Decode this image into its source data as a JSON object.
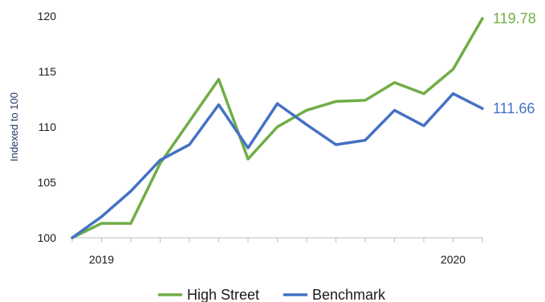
{
  "chart_data": {
    "type": "line",
    "title": "",
    "ylabel": "Indexed to 100",
    "xlabel": "",
    "ylim": [
      100,
      120
    ],
    "yticks": [
      100,
      105,
      110,
      115,
      120
    ],
    "x_labels": [
      {
        "index": 1,
        "label": "2019"
      },
      {
        "index": 13,
        "label": "2020"
      }
    ],
    "num_points": 15,
    "grid": false,
    "legend_position": "bottom",
    "series": [
      {
        "name": "High Street",
        "color": "#70ad47",
        "values": [
          100,
          101.3,
          101.3,
          106.7,
          110.5,
          114.3,
          107.1,
          110.0,
          111.5,
          112.3,
          112.4,
          114.0,
          113.0,
          115.2,
          119.78
        ],
        "end_label": "119.78"
      },
      {
        "name": "Benchmark",
        "color": "#4472c4",
        "values": [
          100,
          101.9,
          104.2,
          107.0,
          108.4,
          112.0,
          108.1,
          112.1,
          110.2,
          108.4,
          108.8,
          111.5,
          110.1,
          113.0,
          111.66
        ],
        "end_label": "111.66"
      }
    ]
  }
}
